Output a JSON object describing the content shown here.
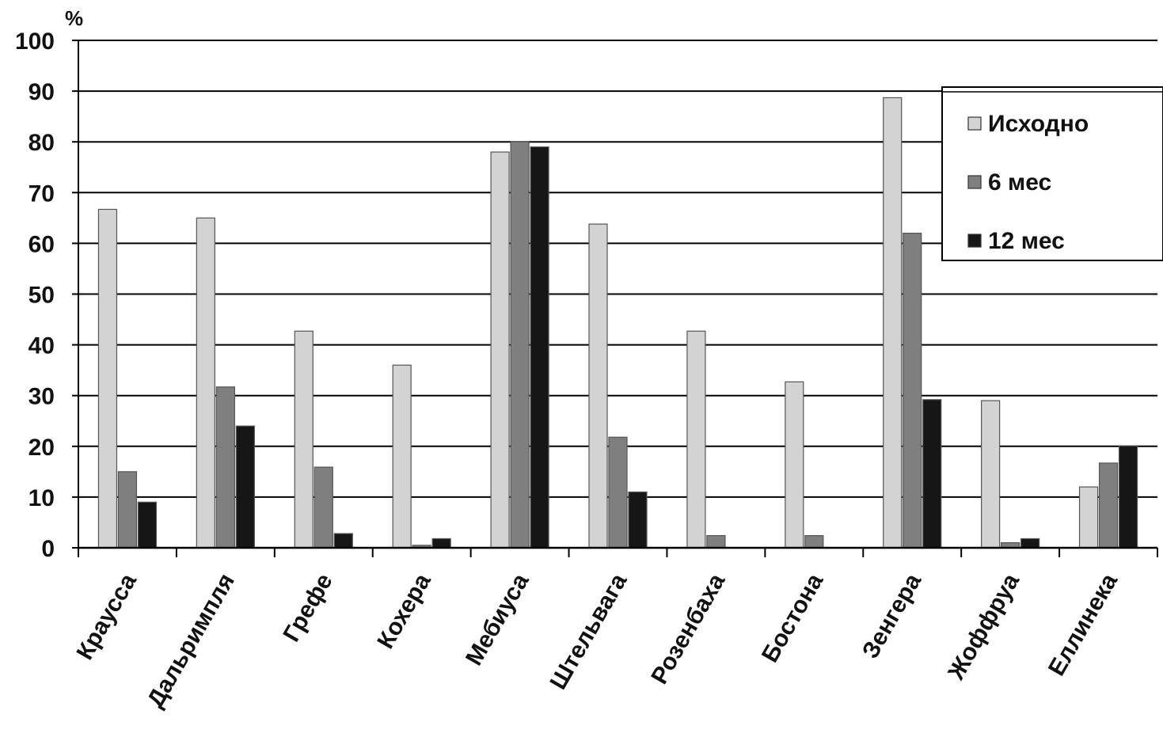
{
  "chart_data": {
    "type": "bar",
    "ylabel": "%",
    "ylim": [
      0,
      100
    ],
    "yticks": [
      "0",
      "10",
      "20",
      "30",
      "40",
      "50",
      "60",
      "70",
      "80",
      "90",
      "100"
    ],
    "grid": true,
    "legend_position": "top-right",
    "categories": [
      "Краусса",
      "Дальримпля",
      "Грефе",
      "Кохера",
      "Мебиуса",
      "Штельвага",
      "Розенбаха",
      "Бостона",
      "Зенгера",
      "Жоффруа",
      "Еллинека"
    ],
    "series": [
      {
        "name": "Исходно",
        "color": "#d3d3d3",
        "values": [
          66.7,
          65,
          42.7,
          36,
          78,
          63.8,
          42.7,
          32.7,
          88.7,
          29,
          12
        ]
      },
      {
        "name": "6 мес",
        "color": "#7f7f7f",
        "values": [
          15,
          31.7,
          15.9,
          0.5,
          80,
          21.8,
          2.4,
          2.4,
          62,
          1,
          16.7
        ]
      },
      {
        "name": "12 мес",
        "color": "#161616",
        "values": [
          9,
          24,
          2.8,
          1.8,
          79,
          11,
          0,
          0,
          29.2,
          1.8,
          20.1
        ]
      }
    ]
  }
}
